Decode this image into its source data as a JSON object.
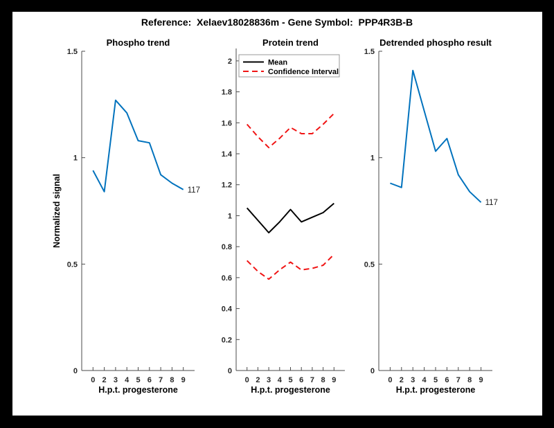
{
  "figure": {
    "title": "Reference:  Xelaev18028836m - Gene Symbol:  PPP4R3B-B",
    "border_color": "#000000",
    "canvas_color": "#ffffff"
  },
  "colors": {
    "blue": "#0072BD",
    "red": "#F01414",
    "black": "#000000",
    "axis": "#4a4a4a",
    "tick_text": "#262626",
    "legend_border": "#999999"
  },
  "chart_data": [
    {
      "type": "line",
      "title": "Phospho trend",
      "xlabel": "H.p.t. progesterone",
      "ylabel": "Normalized signal",
      "x_ticklabels": [
        "0",
        "2",
        "3",
        "4",
        "5",
        "6",
        "7",
        "8",
        "9"
      ],
      "ylim": [
        0,
        1.5
      ],
      "yticks": [
        0,
        0.5,
        1,
        1.5
      ],
      "grid": false,
      "end_label": "117",
      "series": [
        {
          "name": "Phospho",
          "color": "#0072BD",
          "dash": null,
          "values": [
            0.94,
            0.84,
            1.27,
            1.21,
            1.08,
            1.07,
            0.92,
            0.88,
            0.85
          ]
        }
      ]
    },
    {
      "type": "line",
      "title": "Protein trend",
      "xlabel": "H.p.t. progesterone",
      "ylabel": "",
      "x_ticklabels": [
        "0",
        "2",
        "3",
        "4",
        "5",
        "6",
        "7",
        "8",
        "9"
      ],
      "ylim": [
        0,
        2.08
      ],
      "yticks": [
        0,
        0.2,
        0.4,
        0.6,
        0.8,
        1,
        1.2,
        1.4,
        1.6,
        1.8,
        2
      ],
      "grid": false,
      "legend": {
        "position": "top-left",
        "entries": [
          {
            "label": "Mean",
            "color": "#000000",
            "dash": null
          },
          {
            "label": "Confidence Interval",
            "color": "#F01414",
            "dash": "8 5"
          }
        ]
      },
      "series": [
        {
          "name": "CI upper",
          "color": "#F01414",
          "dash": "8 5",
          "values": [
            1.59,
            1.51,
            1.44,
            1.5,
            1.57,
            1.53,
            1.53,
            1.59,
            1.66
          ]
        },
        {
          "name": "Mean",
          "color": "#000000",
          "dash": null,
          "values": [
            1.05,
            0.97,
            0.89,
            0.96,
            1.04,
            0.96,
            0.99,
            1.02,
            1.08
          ]
        },
        {
          "name": "CI lower",
          "color": "#F01414",
          "dash": "8 5",
          "values": [
            0.71,
            0.64,
            0.59,
            0.65,
            0.7,
            0.65,
            0.66,
            0.68,
            0.75
          ]
        }
      ]
    },
    {
      "type": "line",
      "title": "Detrended phospho result",
      "xlabel": "H.p.t. progesterone",
      "ylabel": "",
      "x_ticklabels": [
        "0",
        "2",
        "3",
        "4",
        "5",
        "6",
        "7",
        "8",
        "9"
      ],
      "ylim": [
        0,
        1.5
      ],
      "yticks": [
        0,
        0.5,
        1,
        1.5
      ],
      "grid": false,
      "end_label": "117",
      "series": [
        {
          "name": "Detrended phospho",
          "color": "#0072BD",
          "dash": null,
          "values": [
            0.88,
            0.86,
            1.41,
            1.22,
            1.03,
            1.09,
            0.92,
            0.84,
            0.79
          ]
        }
      ]
    }
  ]
}
